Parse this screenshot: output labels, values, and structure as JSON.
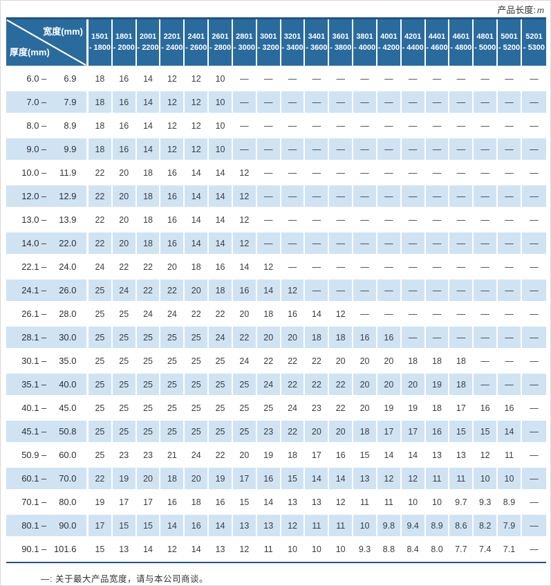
{
  "page": {
    "unit_prefix": "产品长度:",
    "unit_value": "m",
    "footnote": "—: 关于最大产品宽度，请与本公司商谈。"
  },
  "colors": {
    "header_blue": "#2a6b9e",
    "stripe_blue": "#cfe3f3",
    "border_navy": "#1d5488",
    "text_dark": "#3c3c3c"
  },
  "table": {
    "corner": {
      "top_right": "宽度(mm)",
      "bottom_left": "厚度(mm)"
    },
    "width_columns": [
      {
        "from": "1501",
        "to": "- 1800"
      },
      {
        "from": "1801",
        "to": "- 2000"
      },
      {
        "from": "2001",
        "to": "- 2200"
      },
      {
        "from": "2201",
        "to": "- 2400"
      },
      {
        "from": "2401",
        "to": "- 2600"
      },
      {
        "from": "2601",
        "to": "- 2800"
      },
      {
        "from": "2801",
        "to": "- 3000"
      },
      {
        "from": "3001",
        "to": "- 3200"
      },
      {
        "from": "3201",
        "to": "- 3400"
      },
      {
        "from": "3401",
        "to": "- 3600"
      },
      {
        "from": "3601",
        "to": "- 3800"
      },
      {
        "from": "3801",
        "to": "- 4000"
      },
      {
        "from": "4001",
        "to": "- 4200"
      },
      {
        "from": "4201",
        "to": "- 4400"
      },
      {
        "from": "4401",
        "to": "- 4600"
      },
      {
        "from": "4601",
        "to": "- 4800"
      },
      {
        "from": "4801",
        "to": "- 5000"
      },
      {
        "from": "5001",
        "to": "- 5200"
      },
      {
        "from": "5201",
        "to": "- 5300"
      }
    ],
    "rows": [
      {
        "min": "6.0",
        "max": "6.9",
        "values": [
          "18",
          "16",
          "14",
          "12",
          "12",
          "10",
          "—",
          "—",
          "—",
          "—",
          "—",
          "—",
          "—",
          "—",
          "—",
          "—",
          "—",
          "—",
          "—"
        ]
      },
      {
        "min": "7.0",
        "max": "7.9",
        "values": [
          "18",
          "16",
          "14",
          "12",
          "12",
          "10",
          "—",
          "—",
          "—",
          "—",
          "—",
          "—",
          "—",
          "—",
          "—",
          "—",
          "—",
          "—",
          "—"
        ]
      },
      {
        "min": "8.0",
        "max": "8.9",
        "values": [
          "18",
          "16",
          "14",
          "12",
          "12",
          "10",
          "—",
          "—",
          "—",
          "—",
          "—",
          "—",
          "—",
          "—",
          "—",
          "—",
          "—",
          "—",
          "—"
        ]
      },
      {
        "min": "9.0",
        "max": "9.9",
        "values": [
          "18",
          "16",
          "14",
          "12",
          "12",
          "10",
          "—",
          "—",
          "—",
          "—",
          "—",
          "—",
          "—",
          "—",
          "—",
          "—",
          "—",
          "—",
          "—"
        ]
      },
      {
        "min": "10.0",
        "max": "11.9",
        "values": [
          "22",
          "20",
          "18",
          "16",
          "14",
          "14",
          "12",
          "—",
          "—",
          "—",
          "—",
          "—",
          "—",
          "—",
          "—",
          "—",
          "—",
          "—",
          "—"
        ]
      },
      {
        "min": "12.0",
        "max": "12.9",
        "values": [
          "22",
          "20",
          "18",
          "16",
          "14",
          "14",
          "12",
          "—",
          "—",
          "—",
          "—",
          "—",
          "—",
          "—",
          "—",
          "—",
          "—",
          "—",
          "—"
        ]
      },
      {
        "min": "13.0",
        "max": "13.9",
        "values": [
          "22",
          "20",
          "18",
          "16",
          "14",
          "14",
          "12",
          "—",
          "—",
          "—",
          "—",
          "—",
          "—",
          "—",
          "—",
          "—",
          "—",
          "—",
          "—"
        ]
      },
      {
        "min": "14.0",
        "max": "22.0",
        "values": [
          "22",
          "20",
          "18",
          "16",
          "14",
          "14",
          "12",
          "—",
          "—",
          "—",
          "—",
          "—",
          "—",
          "—",
          "—",
          "—",
          "—",
          "—",
          "—"
        ]
      },
      {
        "min": "22.1",
        "max": "24.0",
        "values": [
          "24",
          "22",
          "22",
          "20",
          "18",
          "16",
          "14",
          "12",
          "—",
          "—",
          "—",
          "—",
          "—",
          "—",
          "—",
          "—",
          "—",
          "—",
          "—"
        ]
      },
      {
        "min": "24.1",
        "max": "26.0",
        "values": [
          "25",
          "24",
          "22",
          "22",
          "20",
          "18",
          "16",
          "14",
          "12",
          "—",
          "—",
          "—",
          "—",
          "—",
          "—",
          "—",
          "—",
          "—",
          "—"
        ]
      },
      {
        "min": "26.1",
        "max": "28.0",
        "values": [
          "25",
          "25",
          "24",
          "24",
          "22",
          "22",
          "20",
          "18",
          "16",
          "14",
          "12",
          "—",
          "—",
          "—",
          "—",
          "—",
          "—",
          "—",
          "—"
        ]
      },
      {
        "min": "28.1",
        "max": "30.0",
        "values": [
          "25",
          "25",
          "25",
          "25",
          "25",
          "24",
          "22",
          "20",
          "20",
          "18",
          "18",
          "16",
          "16",
          "—",
          "—",
          "—",
          "—",
          "—",
          "—"
        ]
      },
      {
        "min": "30.1",
        "max": "35.0",
        "values": [
          "25",
          "25",
          "25",
          "25",
          "25",
          "25",
          "24",
          "22",
          "22",
          "22",
          "20",
          "20",
          "20",
          "18",
          "18",
          "18",
          "—",
          "—",
          "—"
        ]
      },
      {
        "min": "35.1",
        "max": "40.0",
        "values": [
          "25",
          "25",
          "25",
          "25",
          "25",
          "25",
          "25",
          "24",
          "22",
          "22",
          "22",
          "20",
          "20",
          "20",
          "19",
          "18",
          "—",
          "—",
          "—"
        ]
      },
      {
        "min": "40.1",
        "max": "45.0",
        "values": [
          "25",
          "25",
          "25",
          "25",
          "25",
          "25",
          "25",
          "25",
          "24",
          "23",
          "22",
          "20",
          "19",
          "19",
          "18",
          "17",
          "16",
          "16",
          "—"
        ]
      },
      {
        "min": "45.1",
        "max": "50.8",
        "values": [
          "25",
          "25",
          "25",
          "25",
          "25",
          "25",
          "25",
          "23",
          "22",
          "20",
          "20",
          "18",
          "17",
          "17",
          "16",
          "15",
          "15",
          "14",
          "—"
        ]
      },
      {
        "min": "50.9",
        "max": "60.0",
        "values": [
          "25",
          "23",
          "23",
          "21",
          "24",
          "22",
          "20",
          "19",
          "18",
          "17",
          "16",
          "15",
          "14",
          "14",
          "13",
          "13",
          "12",
          "11",
          "—"
        ]
      },
      {
        "min": "60.1",
        "max": "70.0",
        "values": [
          "22",
          "19",
          "20",
          "18",
          "20",
          "19",
          "17",
          "16",
          "15",
          "14",
          "14",
          "13",
          "12",
          "12",
          "11",
          "11",
          "10",
          "10",
          "—"
        ]
      },
      {
        "min": "70.1",
        "max": "80.0",
        "values": [
          "19",
          "17",
          "17",
          "16",
          "18",
          "16",
          "15",
          "14",
          "13",
          "13",
          "12",
          "11",
          "11",
          "10",
          "10",
          "9.7",
          "9.3",
          "8.9",
          "—"
        ]
      },
      {
        "min": "80.1",
        "max": "90.0",
        "values": [
          "17",
          "15",
          "15",
          "14",
          "16",
          "14",
          "13",
          "13",
          "12",
          "11",
          "11",
          "10",
          "9.8",
          "9.4",
          "8.9",
          "8.6",
          "8.2",
          "7.9",
          "—"
        ]
      },
      {
        "min": "90.1",
        "max": "101.6",
        "values": [
          "15",
          "13",
          "14",
          "12",
          "14",
          "13",
          "12",
          "11",
          "10",
          "10",
          "10",
          "9.3",
          "8.8",
          "8.4",
          "8.0",
          "7.7",
          "7.4",
          "7.1",
          "—"
        ]
      }
    ]
  }
}
